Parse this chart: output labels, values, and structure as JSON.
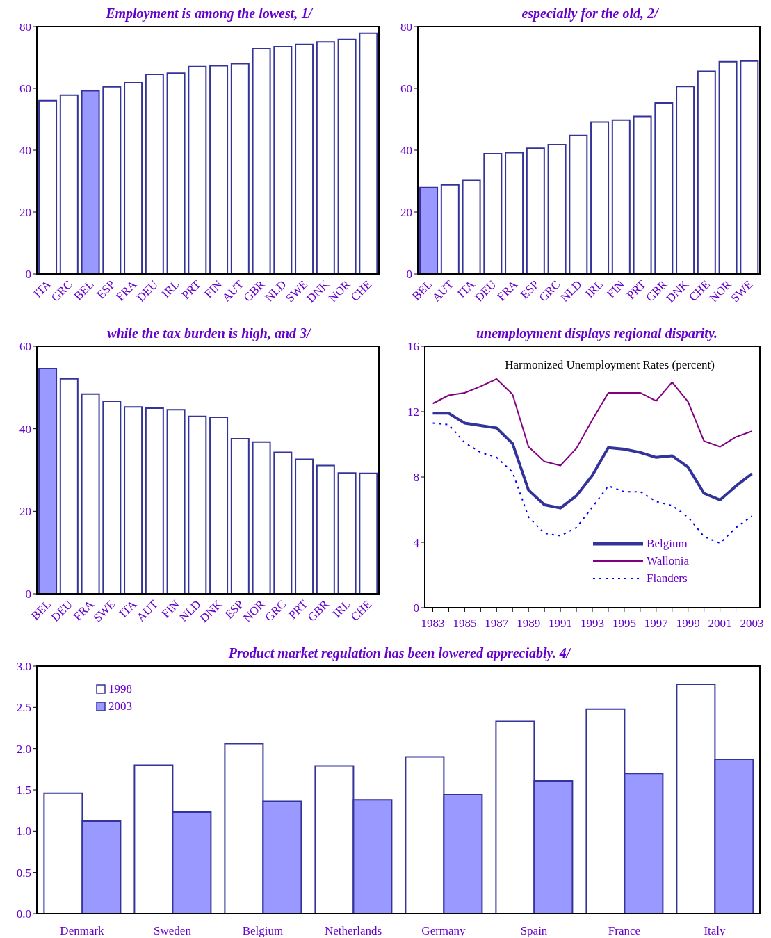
{
  "chart_data": [
    {
      "type": "bar",
      "title": "Employment is among the lowest, 1/",
      "categories": [
        "ITA",
        "GRC",
        "BEL",
        "ESP",
        "FRA",
        "DEU",
        "IRL",
        "PRT",
        "FIN",
        "AUT",
        "GBR",
        "NLD",
        "SWE",
        "DNK",
        "NOR",
        "CHE"
      ],
      "values": [
        56,
        57.8,
        59.2,
        60.5,
        61.8,
        64.5,
        64.9,
        67,
        67.3,
        68,
        72.8,
        73.5,
        74.2,
        75,
        75.8,
        77.8
      ],
      "colors": [
        "#ffffff",
        "#ffffff",
        "#9999ff",
        "#ffffff",
        "#ffffff",
        "#ffffff",
        "#ffffff",
        "#ffffff",
        "#ffffff",
        "#ffffff",
        "#ffffff",
        "#ffffff",
        "#ffffff",
        "#ffffff",
        "#ffffff",
        "#ffffff"
      ],
      "ylim": [
        0,
        80
      ],
      "yticks": [
        0,
        20,
        40,
        60,
        80
      ]
    },
    {
      "type": "bar",
      "title": "especially for the old, 2/",
      "categories": [
        "BEL",
        "AUT",
        "ITA",
        "DEU",
        "FRA",
        "ESP",
        "GRC",
        "NLD",
        "IRL",
        "FIN",
        "PRT",
        "GBR",
        "DNK",
        "CHE",
        "NOR",
        "SWE"
      ],
      "values": [
        27.9,
        28.8,
        30.2,
        38.9,
        39.2,
        40.6,
        41.8,
        44.8,
        49.1,
        49.7,
        50.9,
        55.3,
        60.6,
        65.5,
        68.6,
        68.8
      ],
      "colors": [
        "#9999ff",
        "#ffffff",
        "#ffffff",
        "#ffffff",
        "#ffffff",
        "#ffffff",
        "#ffffff",
        "#ffffff",
        "#ffffff",
        "#ffffff",
        "#ffffff",
        "#ffffff",
        "#ffffff",
        "#ffffff",
        "#ffffff",
        "#ffffff"
      ],
      "ylim": [
        0,
        80
      ],
      "yticks": [
        0,
        20,
        40,
        60,
        80
      ]
    },
    {
      "type": "bar",
      "title": "while the tax burden is high, and 3/",
      "categories": [
        "BEL",
        "DEU",
        "FRA",
        "SWE",
        "ITA",
        "AUT",
        "FIN",
        "NLD",
        "DNK",
        "ESP",
        "NOR",
        "GRC",
        "PRT",
        "GBR",
        "IRL",
        "CHE"
      ],
      "values": [
        54.6,
        52.1,
        48.4,
        46.7,
        45.3,
        45,
        44.6,
        43,
        42.8,
        37.6,
        36.8,
        34.3,
        32.6,
        31.1,
        29.3,
        29.2
      ],
      "colors": [
        "#9999ff",
        "#ffffff",
        "#ffffff",
        "#ffffff",
        "#ffffff",
        "#ffffff",
        "#ffffff",
        "#ffffff",
        "#ffffff",
        "#ffffff",
        "#ffffff",
        "#ffffff",
        "#ffffff",
        "#ffffff",
        "#ffffff",
        "#ffffff"
      ],
      "ylim": [
        0,
        60
      ],
      "yticks": [
        0,
        20,
        40,
        60
      ]
    },
    {
      "type": "line",
      "title": "unemployment displays regional disparity.",
      "annotations": [
        "Harmonized Unemployment Rates (percent)"
      ],
      "x": [
        1983,
        1984,
        1985,
        1986,
        1987,
        1988,
        1989,
        1990,
        1991,
        1992,
        1993,
        1994,
        1995,
        1996,
        1997,
        1998,
        1999,
        2000,
        2001,
        2002,
        2003
      ],
      "series": [
        {
          "name": "Belgium",
          "color": "#333399",
          "line_style": "solid",
          "values": [
            11.9,
            11.9,
            11.3,
            11.15,
            11,
            10.05,
            7.2,
            6.3,
            6.1,
            6.85,
            8.1,
            9.8,
            9.7,
            9.5,
            9.2,
            9.3,
            8.6,
            7,
            6.6,
            7.45,
            8.2
          ]
        },
        {
          "name": "Wallonia",
          "color": "#800080",
          "line_style": "solid",
          "values": [
            12.5,
            13,
            13.15,
            13.55,
            14,
            13.05,
            9.85,
            8.95,
            8.7,
            9.75,
            11.5,
            13.15,
            13.15,
            13.15,
            12.65,
            13.8,
            12.6,
            10.2,
            9.85,
            10.45,
            10.8
          ]
        },
        {
          "name": "Flanders",
          "color": "#0000ff",
          "line_style": "dotted",
          "values": [
            11.3,
            11.2,
            10.1,
            9.5,
            9.2,
            8.3,
            5.55,
            4.55,
            4.4,
            4.9,
            6.15,
            7.45,
            7.1,
            7.1,
            6.5,
            6.25,
            5.55,
            4.35,
            3.95,
            4.9,
            5.6
          ]
        }
      ],
      "xlim": [
        1982.5,
        2003.5
      ],
      "xticks": [
        1983,
        {
          "value": 1984,
          "label": null
        },
        1985,
        {
          "value": 1986,
          "label": null
        },
        1987,
        {
          "value": 1988,
          "label": null
        },
        1989,
        {
          "value": 1990,
          "label": null
        },
        1991,
        {
          "value": 1992,
          "label": null
        },
        1993,
        {
          "value": 1994,
          "label": null
        },
        1995,
        {
          "value": 1996,
          "label": null
        },
        1997,
        {
          "value": 1998,
          "label": null
        },
        1999,
        {
          "value": 2000,
          "label": null
        },
        2001,
        {
          "value": 2002,
          "label": null
        },
        2003
      ],
      "ylim": [
        0,
        16
      ],
      "yticks": [
        0,
        4,
        8,
        12,
        16
      ],
      "legend": "bottom right",
      "marker": "none"
    },
    {
      "type": "bar",
      "title": "Product market regulation has been lowered appreciably. 4/",
      "categories": [
        "Denmark",
        "Sweden",
        "Belgium",
        "Netherlands",
        "Germany",
        "Spain",
        "France",
        "Italy"
      ],
      "series": [
        {
          "name": "1998",
          "color": "#ffffff",
          "values": [
            1.46,
            1.8,
            2.06,
            1.79,
            1.9,
            2.33,
            2.48,
            2.78
          ]
        },
        {
          "name": "2003",
          "color": "#9999ff",
          "values": [
            1.12,
            1.23,
            1.36,
            1.38,
            1.44,
            1.61,
            1.7,
            1.87
          ]
        }
      ],
      "ylim": [
        0,
        3
      ],
      "yticks": [
        {
          "value": 0,
          "label": "0.0"
        },
        {
          "value": 0.5,
          "label": "0.5"
        },
        {
          "value": 1,
          "label": "1.0"
        },
        {
          "value": 1.5,
          "label": "1.5"
        },
        {
          "value": 2,
          "label": "2.0"
        },
        {
          "value": 2.5,
          "label": "2.5"
        },
        {
          "value": 3,
          "label": "3.0"
        }
      ],
      "legend": "top left"
    }
  ]
}
